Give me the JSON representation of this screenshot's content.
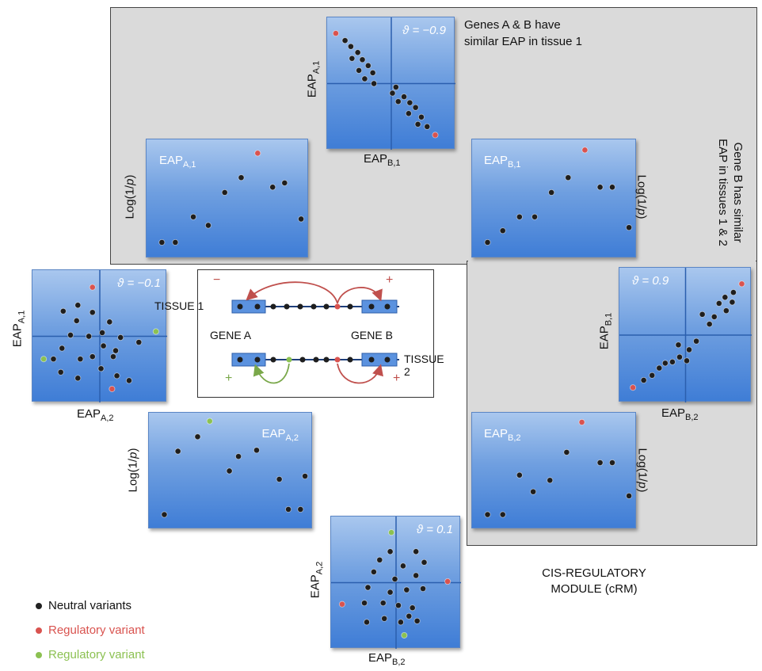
{
  "annotations": {
    "genes_ab_line1": "Genes A & B have",
    "genes_ab_line2": "similar EAP in tissue 1",
    "gene_b_line1": "Gene B has similar",
    "gene_b_line2": "EAP in tissues 1 & 2",
    "crm_line1": "CIS-REGULATORY",
    "crm_line2": "MODULE (cRM)"
  },
  "axis": {
    "eap": "EAP",
    "logp_prefix": "Log(1/",
    "logp_var": "p",
    "logp_suffix": ")",
    "sub_a1": "A,1",
    "sub_b1": "B,1",
    "sub_a2": "A,2",
    "sub_b2": "B,2"
  },
  "theta": {
    "top": "ϑ = −0.9",
    "left": "ϑ = −0.1",
    "right": "ϑ = 0.9",
    "bottom": "ϑ = 0.1"
  },
  "center": {
    "tissue1": "TISSUE 1",
    "tissue2": "TISSUE 2",
    "gene_a": "GENE A",
    "gene_b": "GENE B",
    "minus": "−",
    "plus": "+"
  },
  "legend": [
    {
      "label": "Neutral variants",
      "color": "#222222"
    },
    {
      "label": "Regulatory variant",
      "color": "#d9534f"
    },
    {
      "label": "Regulatory variant",
      "color": "#8cc152"
    }
  ],
  "colors": {
    "neutral": "#1e1e1e",
    "regulatory_red": "#d9534f",
    "regulatory_green": "#8cc152",
    "grey_region": "#dadada",
    "panel_blue": "#4f86d8"
  },
  "chart_data": [
    {
      "type": "scatter",
      "panel": "top-correlation",
      "xlabel": "EAPB,1",
      "ylabel": "EAPA,1",
      "annotation": "ϑ = −0.9",
      "xlim": [
        0,
        10
      ],
      "ylim": [
        0,
        10
      ],
      "points": [
        {
          "x": 0.2,
          "y": 9.2,
          "kind": "red"
        },
        {
          "x": 1.0,
          "y": 8.6,
          "kind": "neutral"
        },
        {
          "x": 1.5,
          "y": 8.1,
          "kind": "neutral"
        },
        {
          "x": 2.1,
          "y": 7.6,
          "kind": "neutral"
        },
        {
          "x": 1.6,
          "y": 7.1,
          "kind": "neutral"
        },
        {
          "x": 2.5,
          "y": 7.0,
          "kind": "neutral"
        },
        {
          "x": 3.0,
          "y": 6.5,
          "kind": "neutral"
        },
        {
          "x": 2.2,
          "y": 6.1,
          "kind": "neutral"
        },
        {
          "x": 3.4,
          "y": 5.9,
          "kind": "neutral"
        },
        {
          "x": 2.7,
          "y": 5.4,
          "kind": "neutral"
        },
        {
          "x": 3.5,
          "y": 5.0,
          "kind": "neutral"
        },
        {
          "x": 5.4,
          "y": 4.7,
          "kind": "neutral"
        },
        {
          "x": 5.1,
          "y": 4.2,
          "kind": "neutral"
        },
        {
          "x": 6.1,
          "y": 3.9,
          "kind": "neutral"
        },
        {
          "x": 5.6,
          "y": 3.5,
          "kind": "neutral"
        },
        {
          "x": 6.6,
          "y": 3.4,
          "kind": "neutral"
        },
        {
          "x": 7.1,
          "y": 3.0,
          "kind": "neutral"
        },
        {
          "x": 6.5,
          "y": 2.5,
          "kind": "neutral"
        },
        {
          "x": 7.6,
          "y": 2.2,
          "kind": "neutral"
        },
        {
          "x": 7.3,
          "y": 1.6,
          "kind": "neutral"
        },
        {
          "x": 8.1,
          "y": 1.4,
          "kind": "neutral"
        },
        {
          "x": 8.8,
          "y": 0.7,
          "kind": "red"
        }
      ]
    },
    {
      "type": "scatter",
      "panel": "logp-a1",
      "label": "EAPA,1",
      "ylabel": "Log(1/p)",
      "xlim": [
        0,
        10
      ],
      "ylim": [
        0,
        10
      ],
      "points": [
        {
          "x": 0.6,
          "y": 0.9,
          "kind": "neutral"
        },
        {
          "x": 1.5,
          "y": 0.9,
          "kind": "neutral"
        },
        {
          "x": 2.7,
          "y": 3.3,
          "kind": "neutral"
        },
        {
          "x": 3.7,
          "y": 2.5,
          "kind": "neutral"
        },
        {
          "x": 4.8,
          "y": 5.6,
          "kind": "neutral"
        },
        {
          "x": 5.9,
          "y": 7.0,
          "kind": "neutral"
        },
        {
          "x": 7.0,
          "y": 9.3,
          "kind": "red"
        },
        {
          "x": 8.0,
          "y": 6.1,
          "kind": "neutral"
        },
        {
          "x": 8.8,
          "y": 6.5,
          "kind": "neutral"
        },
        {
          "x": 9.9,
          "y": 3.1,
          "kind": "neutral"
        }
      ]
    },
    {
      "type": "scatter",
      "panel": "logp-b1",
      "label": "EAPB,1",
      "ylabel": "Log(1/p)",
      "xlim": [
        0,
        10
      ],
      "ylim": [
        0,
        10
      ],
      "points": [
        {
          "x": 0.6,
          "y": 0.9,
          "kind": "neutral"
        },
        {
          "x": 1.6,
          "y": 2.0,
          "kind": "neutral"
        },
        {
          "x": 2.7,
          "y": 3.3,
          "kind": "neutral"
        },
        {
          "x": 3.7,
          "y": 3.3,
          "kind": "neutral"
        },
        {
          "x": 4.8,
          "y": 5.6,
          "kind": "neutral"
        },
        {
          "x": 5.9,
          "y": 7.0,
          "kind": "neutral"
        },
        {
          "x": 7.0,
          "y": 9.6,
          "kind": "red"
        },
        {
          "x": 8.0,
          "y": 6.1,
          "kind": "neutral"
        },
        {
          "x": 8.8,
          "y": 6.1,
          "kind": "neutral"
        },
        {
          "x": 9.9,
          "y": 2.3,
          "kind": "neutral"
        }
      ]
    },
    {
      "type": "scatter",
      "panel": "left-correlation",
      "xlabel": "EAPA,2",
      "ylabel": "EAPA,1",
      "annotation": "ϑ = −0.1",
      "xlim": [
        0,
        10
      ],
      "ylim": [
        0,
        10
      ],
      "points": [
        {
          "x": 4.4,
          "y": 9.1,
          "kind": "red"
        },
        {
          "x": 3.2,
          "y": 7.6,
          "kind": "neutral"
        },
        {
          "x": 2.0,
          "y": 7.1,
          "kind": "neutral"
        },
        {
          "x": 4.4,
          "y": 7.0,
          "kind": "neutral"
        },
        {
          "x": 3.1,
          "y": 6.3,
          "kind": "neutral"
        },
        {
          "x": 2.6,
          "y": 5.1,
          "kind": "neutral"
        },
        {
          "x": 4.1,
          "y": 5.0,
          "kind": "neutral"
        },
        {
          "x": 5.2,
          "y": 5.3,
          "kind": "neutral"
        },
        {
          "x": 6.7,
          "y": 4.9,
          "kind": "neutral"
        },
        {
          "x": 5.8,
          "y": 6.2,
          "kind": "neutral"
        },
        {
          "x": 1.9,
          "y": 4.0,
          "kind": "neutral"
        },
        {
          "x": 5.3,
          "y": 4.2,
          "kind": "neutral"
        },
        {
          "x": 6.3,
          "y": 3.8,
          "kind": "neutral"
        },
        {
          "x": 8.2,
          "y": 4.5,
          "kind": "neutral"
        },
        {
          "x": 9.6,
          "y": 5.4,
          "kind": "green"
        },
        {
          "x": 1.2,
          "y": 3.1,
          "kind": "neutral"
        },
        {
          "x": 0.4,
          "y": 3.1,
          "kind": "green"
        },
        {
          "x": 3.4,
          "y": 3.1,
          "kind": "neutral"
        },
        {
          "x": 4.4,
          "y": 3.3,
          "kind": "neutral"
        },
        {
          "x": 6.1,
          "y": 3.3,
          "kind": "neutral"
        },
        {
          "x": 1.8,
          "y": 2.0,
          "kind": "neutral"
        },
        {
          "x": 5.1,
          "y": 2.3,
          "kind": "neutral"
        },
        {
          "x": 3.2,
          "y": 1.5,
          "kind": "neutral"
        },
        {
          "x": 6.4,
          "y": 1.7,
          "kind": "neutral"
        },
        {
          "x": 7.4,
          "y": 1.3,
          "kind": "neutral"
        },
        {
          "x": 6.0,
          "y": 0.6,
          "kind": "red"
        }
      ]
    },
    {
      "type": "scatter",
      "panel": "right-correlation",
      "xlabel": "EAPB,2",
      "ylabel": "EAPB,1",
      "annotation": "ϑ = 0.9",
      "xlim": [
        0,
        10
      ],
      "ylim": [
        0,
        10
      ],
      "points": [
        {
          "x": 0.6,
          "y": 0.7,
          "kind": "red"
        },
        {
          "x": 1.5,
          "y": 1.3,
          "kind": "neutral"
        },
        {
          "x": 2.2,
          "y": 1.7,
          "kind": "neutral"
        },
        {
          "x": 2.8,
          "y": 2.3,
          "kind": "neutral"
        },
        {
          "x": 3.3,
          "y": 2.7,
          "kind": "neutral"
        },
        {
          "x": 3.9,
          "y": 2.8,
          "kind": "neutral"
        },
        {
          "x": 4.5,
          "y": 3.2,
          "kind": "neutral"
        },
        {
          "x": 5.1,
          "y": 2.9,
          "kind": "neutral"
        },
        {
          "x": 5.3,
          "y": 3.8,
          "kind": "neutral"
        },
        {
          "x": 4.4,
          "y": 4.2,
          "kind": "neutral"
        },
        {
          "x": 5.9,
          "y": 4.5,
          "kind": "neutral"
        },
        {
          "x": 7.0,
          "y": 5.9,
          "kind": "neutral"
        },
        {
          "x": 7.4,
          "y": 6.5,
          "kind": "neutral"
        },
        {
          "x": 6.4,
          "y": 6.7,
          "kind": "neutral"
        },
        {
          "x": 8.4,
          "y": 7.0,
          "kind": "neutral"
        },
        {
          "x": 7.8,
          "y": 7.6,
          "kind": "neutral"
        },
        {
          "x": 8.9,
          "y": 7.7,
          "kind": "neutral"
        },
        {
          "x": 8.3,
          "y": 8.1,
          "kind": "neutral"
        },
        {
          "x": 9.0,
          "y": 8.5,
          "kind": "neutral"
        },
        {
          "x": 9.7,
          "y": 9.2,
          "kind": "red"
        }
      ]
    },
    {
      "type": "scatter",
      "panel": "logp-a2",
      "label": "EAPA,2",
      "ylabel": "Log(1/p)",
      "xlim": [
        0,
        10
      ],
      "ylim": [
        0,
        10
      ],
      "points": [
        {
          "x": 0.6,
          "y": 0.8,
          "kind": "neutral"
        },
        {
          "x": 1.5,
          "y": 6.9,
          "kind": "neutral"
        },
        {
          "x": 2.8,
          "y": 8.3,
          "kind": "neutral"
        },
        {
          "x": 3.6,
          "y": 9.8,
          "kind": "green"
        },
        {
          "x": 4.9,
          "y": 5.0,
          "kind": "neutral"
        },
        {
          "x": 5.5,
          "y": 6.4,
          "kind": "neutral"
        },
        {
          "x": 6.7,
          "y": 7.0,
          "kind": "neutral"
        },
        {
          "x": 8.2,
          "y": 4.2,
          "kind": "neutral"
        },
        {
          "x": 8.8,
          "y": 1.3,
          "kind": "neutral"
        },
        {
          "x": 9.6,
          "y": 1.3,
          "kind": "neutral"
        },
        {
          "x": 9.9,
          "y": 4.5,
          "kind": "neutral"
        }
      ]
    },
    {
      "type": "scatter",
      "panel": "logp-b2",
      "label": "EAPB,2",
      "ylabel": "Log(1/p)",
      "xlim": [
        0,
        10
      ],
      "ylim": [
        0,
        10
      ],
      "points": [
        {
          "x": 0.6,
          "y": 0.8,
          "kind": "neutral"
        },
        {
          "x": 1.6,
          "y": 0.8,
          "kind": "neutral"
        },
        {
          "x": 2.7,
          "y": 4.6,
          "kind": "neutral"
        },
        {
          "x": 3.6,
          "y": 3.0,
          "kind": "neutral"
        },
        {
          "x": 4.7,
          "y": 4.1,
          "kind": "neutral"
        },
        {
          "x": 5.8,
          "y": 6.8,
          "kind": "neutral"
        },
        {
          "x": 6.8,
          "y": 9.7,
          "kind": "red"
        },
        {
          "x": 8.0,
          "y": 5.8,
          "kind": "neutral"
        },
        {
          "x": 8.8,
          "y": 5.8,
          "kind": "neutral"
        },
        {
          "x": 9.9,
          "y": 2.6,
          "kind": "neutral"
        }
      ]
    },
    {
      "type": "scatter",
      "panel": "bottom-correlation",
      "xlabel": "EAPB,2",
      "ylabel": "EAPA,2",
      "annotation": "ϑ = 0.1",
      "xlim": [
        0,
        10
      ],
      "ylim": [
        0,
        10
      ],
      "points": [
        {
          "x": 4.6,
          "y": 9.2,
          "kind": "green"
        },
        {
          "x": 4.5,
          "y": 7.6,
          "kind": "neutral"
        },
        {
          "x": 3.6,
          "y": 6.9,
          "kind": "neutral"
        },
        {
          "x": 6.7,
          "y": 7.6,
          "kind": "neutral"
        },
        {
          "x": 5.6,
          "y": 6.4,
          "kind": "neutral"
        },
        {
          "x": 7.4,
          "y": 6.7,
          "kind": "neutral"
        },
        {
          "x": 3.1,
          "y": 5.9,
          "kind": "neutral"
        },
        {
          "x": 4.9,
          "y": 5.3,
          "kind": "neutral"
        },
        {
          "x": 6.7,
          "y": 5.6,
          "kind": "neutral"
        },
        {
          "x": 9.4,
          "y": 5.1,
          "kind": "red"
        },
        {
          "x": 2.6,
          "y": 4.6,
          "kind": "neutral"
        },
        {
          "x": 4.5,
          "y": 4.2,
          "kind": "neutral"
        },
        {
          "x": 5.9,
          "y": 4.4,
          "kind": "neutral"
        },
        {
          "x": 7.3,
          "y": 4.5,
          "kind": "neutral"
        },
        {
          "x": 0.4,
          "y": 3.2,
          "kind": "red"
        },
        {
          "x": 2.3,
          "y": 3.3,
          "kind": "neutral"
        },
        {
          "x": 3.9,
          "y": 3.3,
          "kind": "neutral"
        },
        {
          "x": 5.2,
          "y": 3.1,
          "kind": "neutral"
        },
        {
          "x": 6.4,
          "y": 2.9,
          "kind": "neutral"
        },
        {
          "x": 4.0,
          "y": 2.0,
          "kind": "neutral"
        },
        {
          "x": 6.1,
          "y": 2.2,
          "kind": "neutral"
        },
        {
          "x": 2.5,
          "y": 1.7,
          "kind": "neutral"
        },
        {
          "x": 5.4,
          "y": 1.7,
          "kind": "neutral"
        },
        {
          "x": 6.8,
          "y": 1.8,
          "kind": "neutral"
        },
        {
          "x": 5.7,
          "y": 0.6,
          "kind": "green"
        }
      ]
    }
  ]
}
